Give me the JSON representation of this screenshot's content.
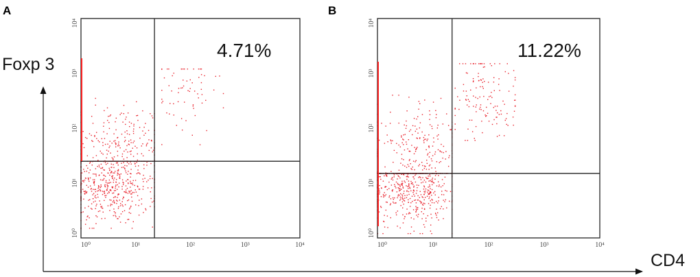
{
  "figure": {
    "y_axis_title": "Foxp 3",
    "x_axis_title": "CD4"
  },
  "colors": {
    "dots": "#e8202a",
    "lines": "#222222",
    "axis_marker": "#ff2020"
  },
  "chart_data": [
    {
      "type": "scatter",
      "panel_label": "A",
      "x_scale": "log",
      "y_scale": "log",
      "xlim": [
        1,
        10000
      ],
      "ylim": [
        1,
        10000
      ],
      "x_ticks": [
        "10⁰",
        "10¹",
        "10²",
        "10³",
        "10⁴"
      ],
      "y_ticks": [
        "10⁰",
        "10¹",
        "10²",
        "10³",
        "10⁴"
      ],
      "gate": {
        "x": 22,
        "y": 25
      },
      "quadrant_label": "4.71%",
      "quadrant_label_position": "top-right",
      "populations": [
        {
          "name": "lower-left",
          "x_range": [
            1,
            22
          ],
          "y_range": [
            1.5,
            25
          ],
          "center_log": [
            0.55,
            1.0
          ],
          "count": 560
        },
        {
          "name": "upper-left",
          "x_range": [
            1,
            22
          ],
          "y_range": [
            25,
            350
          ],
          "center_log": [
            0.7,
            1.7
          ],
          "count": 220
        },
        {
          "name": "upper-right",
          "x_range": [
            30,
            400
          ],
          "y_range": [
            50,
            1200
          ],
          "center_log": [
            1.85,
            2.65
          ],
          "count": 70
        }
      ]
    },
    {
      "type": "scatter",
      "panel_label": "B",
      "x_scale": "log",
      "y_scale": "log",
      "xlim": [
        1,
        10000
      ],
      "ylim": [
        1,
        10000
      ],
      "x_ticks": [
        "10⁰",
        "10¹",
        "10²",
        "10³",
        "10⁴"
      ],
      "y_ticks": [
        "10⁰",
        "10¹",
        "10²",
        "10³",
        "10⁴"
      ],
      "gate": {
        "x": 22,
        "y": 15
      },
      "quadrant_label": "11.22%",
      "quadrant_label_position": "top-right",
      "populations": [
        {
          "name": "lower-left",
          "x_range": [
            1,
            22
          ],
          "y_range": [
            1.2,
            15
          ],
          "center_log": [
            0.6,
            0.9
          ],
          "count": 520
        },
        {
          "name": "upper-left",
          "x_range": [
            1,
            22
          ],
          "y_range": [
            15,
            400
          ],
          "center_log": [
            0.75,
            1.55
          ],
          "count": 260
        },
        {
          "name": "upper-right",
          "x_range": [
            25,
            300
          ],
          "y_range": [
            60,
            1500
          ],
          "center_log": [
            1.9,
            2.6
          ],
          "count": 140
        }
      ]
    }
  ]
}
